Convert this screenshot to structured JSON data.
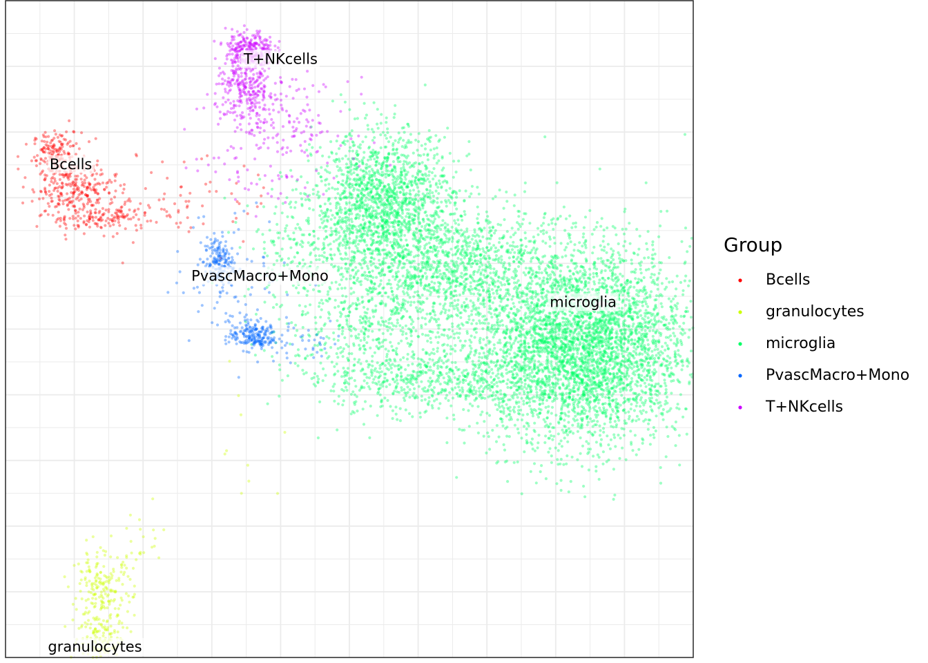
{
  "chart_data": {
    "type": "scatter",
    "title": "",
    "xlabel": "",
    "ylabel": "",
    "xlim": [
      -10,
      10
    ],
    "ylim": [
      -10,
      10
    ],
    "grid": true,
    "legend": {
      "title": "Group",
      "placement": "right"
    },
    "series": [
      {
        "name": "Bcells",
        "color": "#ff0000",
        "label": "Bcells",
        "label_pos": [
          -8.1,
          5.0
        ],
        "clusters": [
          {
            "cx": -8.5,
            "cy": 5.3,
            "sx": 0.35,
            "sy": 0.35,
            "n": 180
          },
          {
            "cx": -8.0,
            "cy": 4.3,
            "sx": 0.6,
            "sy": 0.35,
            "n": 220
          },
          {
            "cx": -7.3,
            "cy": 3.4,
            "sx": 0.8,
            "sy": 0.22,
            "n": 160
          },
          {
            "cx": -5.0,
            "cy": 3.8,
            "sx": 1.6,
            "sy": 0.7,
            "n": 70
          }
        ]
      },
      {
        "name": "granulocytes",
        "color": "#ccff00",
        "label": "granulocytes",
        "label_pos": [
          -7.4,
          -9.7
        ],
        "clusters": [
          {
            "cx": -7.2,
            "cy": -8.0,
            "sx": 0.45,
            "sy": 0.6,
            "n": 200
          },
          {
            "cx": -7.2,
            "cy": -9.5,
            "sx": 0.35,
            "sy": 0.45,
            "n": 130
          },
          {
            "cx": -5.9,
            "cy": -6.4,
            "sx": 0.55,
            "sy": 0.45,
            "n": 22
          },
          {
            "cx": -3.0,
            "cy": -3.6,
            "sx": 0.9,
            "sy": 1.1,
            "n": 10
          }
        ]
      },
      {
        "name": "microglia",
        "color": "#00ff66",
        "label": "microglia",
        "label_pos": [
          6.8,
          0.8
        ],
        "clusters": [
          {
            "cx": 6.7,
            "cy": -0.5,
            "sx": 1.6,
            "sy": 1.5,
            "n": 4200
          },
          {
            "cx": 1.0,
            "cy": 3.8,
            "sx": 1.0,
            "sy": 1.1,
            "n": 1600
          },
          {
            "cx": 3.2,
            "cy": 2.0,
            "sx": 1.3,
            "sy": 0.9,
            "n": 900
          },
          {
            "cx": 0.8,
            "cy": 0.0,
            "sx": 1.3,
            "sy": 1.2,
            "n": 700
          },
          {
            "cx": 2.6,
            "cy": -1.6,
            "sx": 1.5,
            "sy": 0.45,
            "n": 400
          },
          {
            "cx": -1.2,
            "cy": 2.6,
            "sx": 1.0,
            "sy": 0.9,
            "n": 220
          }
        ]
      },
      {
        "name": "PvascMacro+Mono",
        "color": "#0066ff",
        "label": "PvascMacro+Mono",
        "label_pos": [
          -2.6,
          1.6
        ],
        "clusters": [
          {
            "cx": -3.8,
            "cy": 2.0,
            "sx": 0.22,
            "sy": 0.4,
            "n": 170
          },
          {
            "cx": -2.8,
            "cy": -0.2,
            "sx": 0.35,
            "sy": 0.22,
            "n": 190
          },
          {
            "cx": -3.3,
            "cy": 1.6,
            "sx": 0.9,
            "sy": 1.0,
            "n": 80
          },
          {
            "cx": -1.4,
            "cy": -0.4,
            "sx": 0.8,
            "sy": 0.35,
            "n": 40
          }
        ]
      },
      {
        "name": "T+NKcells",
        "color": "#cc00ff",
        "label": "T+NKcells",
        "label_pos": [
          -2.0,
          8.2
        ],
        "clusters": [
          {
            "cx": -2.9,
            "cy": 8.5,
            "sx": 0.35,
            "sy": 0.3,
            "n": 260
          },
          {
            "cx": -3.0,
            "cy": 7.3,
            "sx": 0.45,
            "sy": 0.5,
            "n": 260
          },
          {
            "cx": -2.0,
            "cy": 6.2,
            "sx": 1.0,
            "sy": 0.7,
            "n": 150
          },
          {
            "cx": -2.2,
            "cy": 4.6,
            "sx": 1.1,
            "sy": 0.7,
            "n": 40
          }
        ]
      }
    ]
  }
}
